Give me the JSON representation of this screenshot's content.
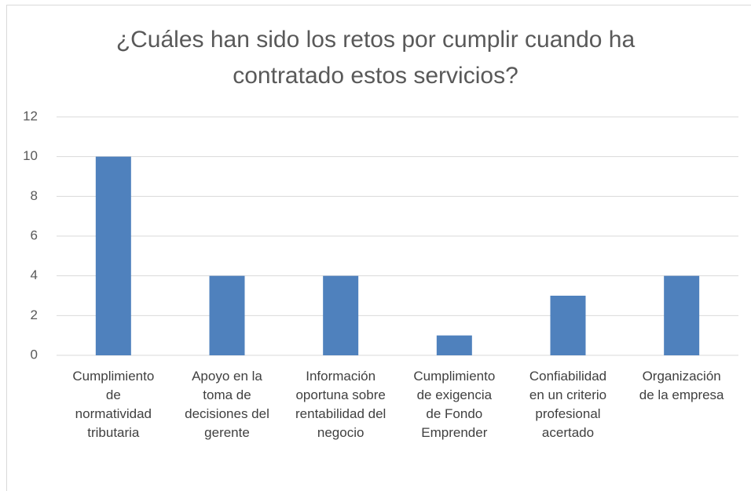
{
  "chart_data": {
    "type": "bar",
    "title": "¿Cuáles han sido los retos por cumplir cuando ha contratado estos servicios?",
    "categories": [
      "Cumplimiento de normatividad tributaria",
      "Apoyo en la toma de decisiones del gerente",
      "Información oportuna sobre rentabilidad del negocio",
      "Cumplimiento de exigencia de Fondo Emprender",
      "Confiabilidad en un criterio profesional acertado",
      "Organización de la empresa"
    ],
    "values": [
      10,
      4,
      4,
      1,
      3,
      4
    ],
    "color": "#4f81bd",
    "ylim": [
      0,
      12
    ],
    "yticks": [
      0,
      2,
      4,
      6,
      8,
      10,
      12
    ],
    "grid": true
  }
}
